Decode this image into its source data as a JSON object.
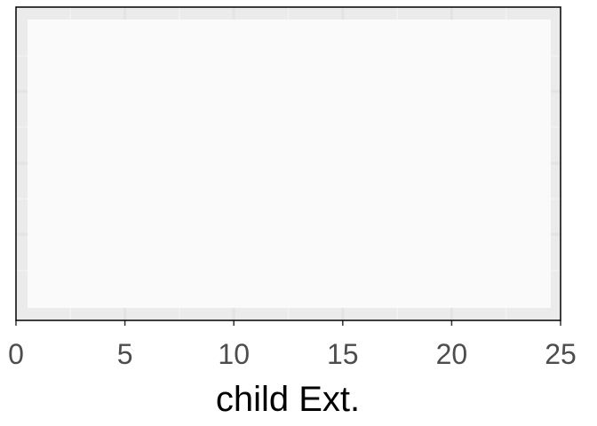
{
  "chart_data": {
    "type": "scatter",
    "xlabel": "child Ext.",
    "ylabel": "",
    "xlim": [
      0,
      25
    ],
    "x_ticks": [
      0,
      5,
      10,
      15,
      20,
      25
    ],
    "x_tick_labels": [
      "0",
      "5",
      "10",
      "15",
      "20",
      "25"
    ],
    "y_ticks_shown": false,
    "series": [],
    "grid": true,
    "legend": "none",
    "colors": {
      "panel_background": "#ebebeb",
      "data_region": "#fafafa",
      "grid_major": "#ebebeb",
      "grid_minor": "#f2f2f2",
      "border": "#000000"
    }
  }
}
